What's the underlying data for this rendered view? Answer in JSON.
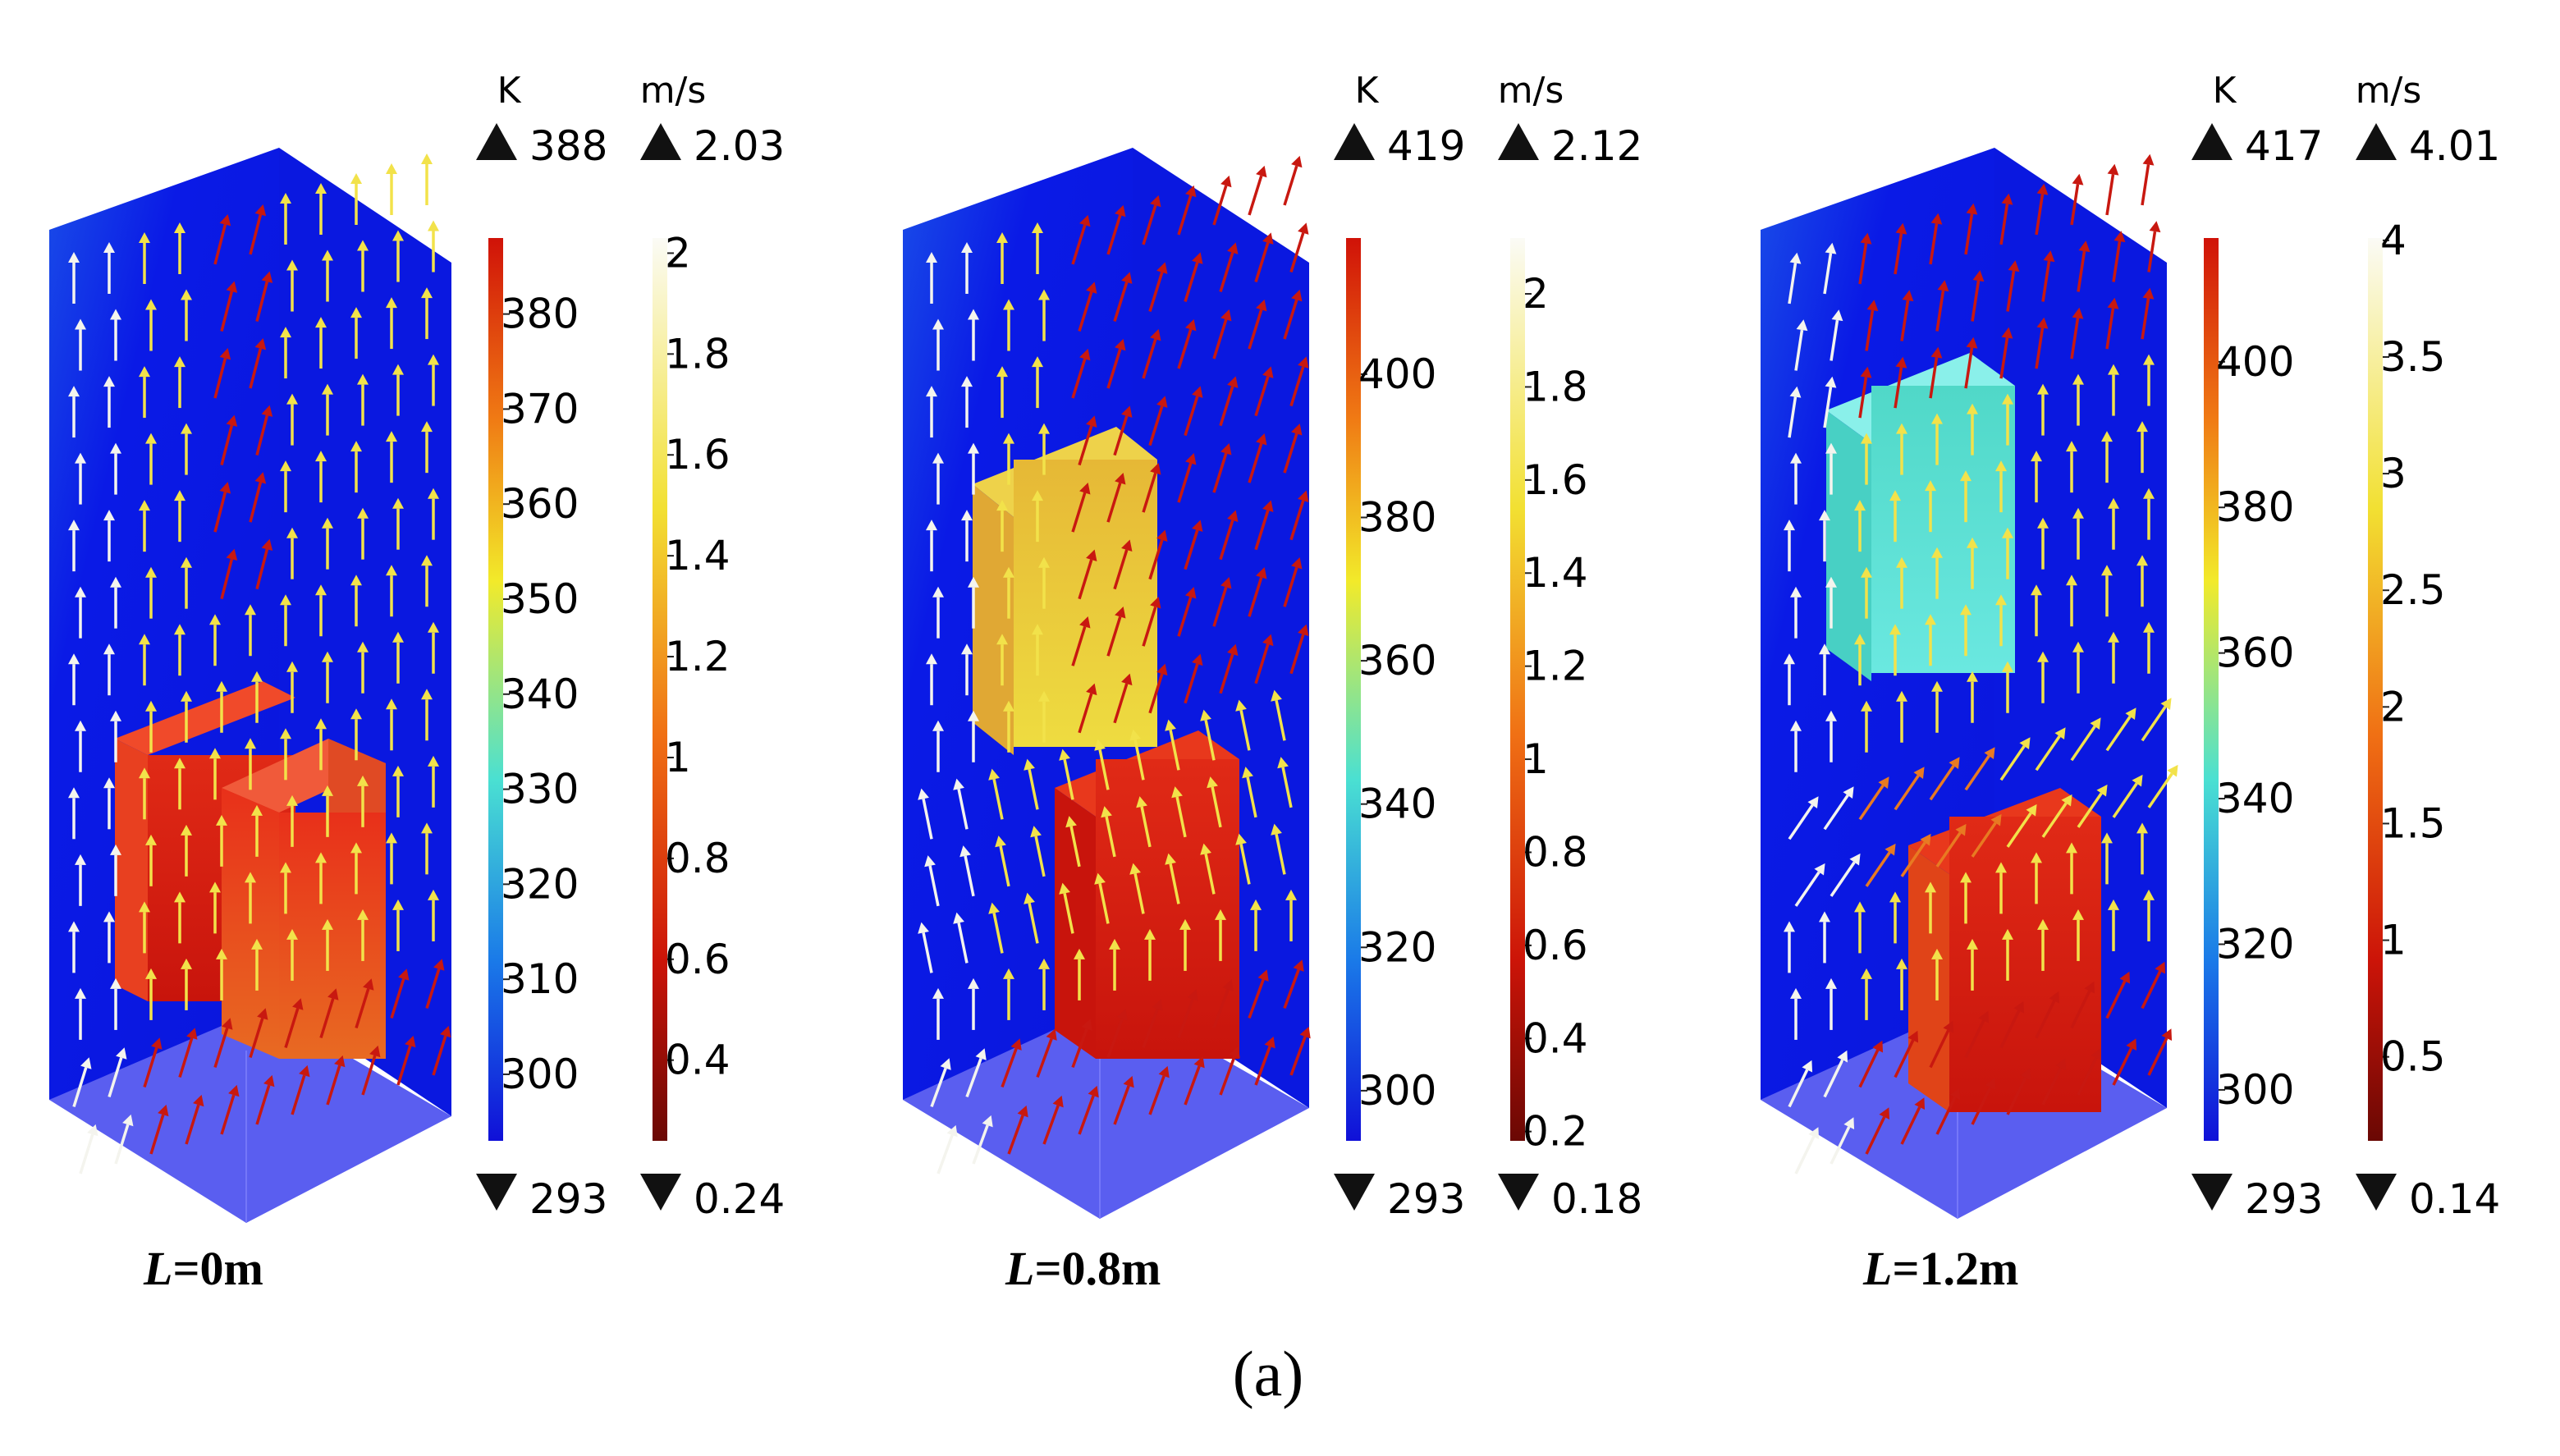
{
  "figure": {
    "caption": "(a)"
  },
  "colors": {
    "domain_blue": "#0a1ae6",
    "floor": "#5a5ef0",
    "hot_red": "#d81a0e",
    "warm_orange": "#e8601a",
    "yellow_heater": "#e6cc3a",
    "cyan_heater": "#5fe0d8",
    "arrow_yellow": "#f2e24a",
    "arrow_red": "#c81810",
    "arrow_white": "#f4f4ee"
  },
  "panels": [
    {
      "id": "L0",
      "label_var": "L",
      "label_val": "=0m",
      "temp": {
        "unit": "K",
        "max": "388",
        "min": "293",
        "ticks": [
          "380",
          "370",
          "360",
          "350",
          "340",
          "330",
          "320",
          "310",
          "300"
        ],
        "tick_values": [
          380,
          370,
          360,
          350,
          340,
          330,
          320,
          310,
          300
        ],
        "range": [
          293,
          388
        ]
      },
      "vel": {
        "unit": "m/s",
        "max": "2.03",
        "min": "0.24",
        "ticks": [
          "2",
          "1.8",
          "1.6",
          "1.4",
          "1.2",
          "1",
          "0.8",
          "0.6",
          "0.4"
        ],
        "tick_values": [
          2,
          1.8,
          1.6,
          1.4,
          1.2,
          1,
          0.8,
          0.6,
          0.4
        ],
        "range": [
          0.24,
          2.03
        ]
      }
    },
    {
      "id": "L08",
      "label_var": "L",
      "label_val": "=0.8m",
      "temp": {
        "unit": "K",
        "max": "419",
        "min": "293",
        "ticks": [
          "400",
          "380",
          "360",
          "340",
          "320",
          "300"
        ],
        "tick_values": [
          400,
          380,
          360,
          340,
          320,
          300
        ],
        "range": [
          293,
          419
        ]
      },
      "vel": {
        "unit": "m/s",
        "max": "2.12",
        "min": "0.18",
        "ticks": [
          "2",
          "1.8",
          "1.6",
          "1.4",
          "1.2",
          "1",
          "0.8",
          "0.6",
          "0.4",
          "0.2"
        ],
        "tick_values": [
          2,
          1.8,
          1.6,
          1.4,
          1.2,
          1,
          0.8,
          0.6,
          0.4,
          0.2
        ],
        "range": [
          0.18,
          2.12
        ]
      }
    },
    {
      "id": "L12",
      "label_var": "L",
      "label_val": "=1.2m",
      "temp": {
        "unit": "K",
        "max": "417",
        "min": "293",
        "ticks": [
          "400",
          "380",
          "360",
          "340",
          "320",
          "300"
        ],
        "tick_values": [
          400,
          380,
          360,
          340,
          320,
          300
        ],
        "range": [
          293,
          417
        ]
      },
      "vel": {
        "unit": "m/s",
        "max": "4.01",
        "min": "0.14",
        "ticks": [
          "4",
          "3.5",
          "3",
          "2.5",
          "2",
          "1.5",
          "1",
          "0.5"
        ],
        "tick_values": [
          4,
          3.5,
          3,
          2.5,
          2,
          1.5,
          1,
          0.5
        ],
        "range": [
          0.14,
          4.01
        ]
      }
    }
  ]
}
